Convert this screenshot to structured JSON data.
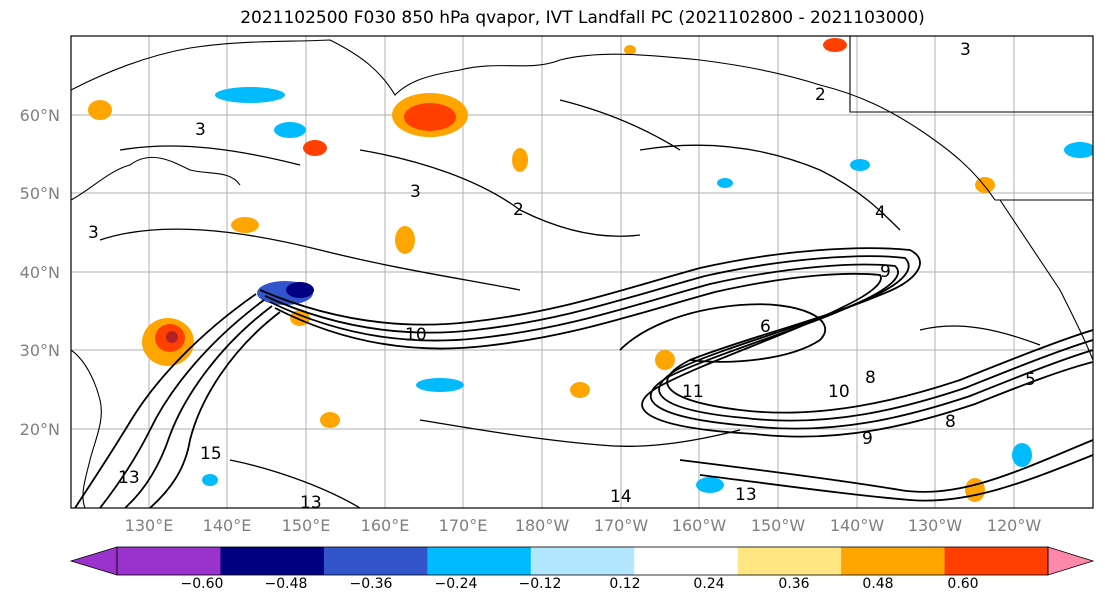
{
  "title": "2021102500 F030 850 hPa qvapor, IVT Landfall PC (2021102800 - 2021103000)",
  "map": {
    "lat_labels": [
      "60°N",
      "50°N",
      "40°N",
      "30°N",
      "20°N"
    ],
    "lon_labels": [
      "130°E",
      "140°E",
      "150°E",
      "160°E",
      "170°E",
      "180°W",
      "170°W",
      "160°W",
      "150°W",
      "140°W",
      "130°W",
      "120°W"
    ],
    "contour_labels": [
      "3",
      "2",
      "3",
      "2",
      "3",
      "4",
      "9",
      "10",
      "6",
      "8",
      "11",
      "10",
      "8",
      "9",
      "13",
      "15",
      "13",
      "13",
      "14",
      "5",
      "3"
    ]
  },
  "colorbar": {
    "colors": [
      "#9933cc",
      "#000080",
      "#3355cc",
      "#00bbff",
      "#b3e6ff",
      "#ffffff",
      "#ffe680",
      "#ffa500",
      "#ff4000",
      "#b22222",
      "#ff88aa"
    ],
    "tick_labels": [
      "−0.60",
      "−0.48",
      "−0.36",
      "−0.24",
      "−0.12",
      "0.12",
      "0.24",
      "0.36",
      "0.48",
      "0.60"
    ]
  }
}
